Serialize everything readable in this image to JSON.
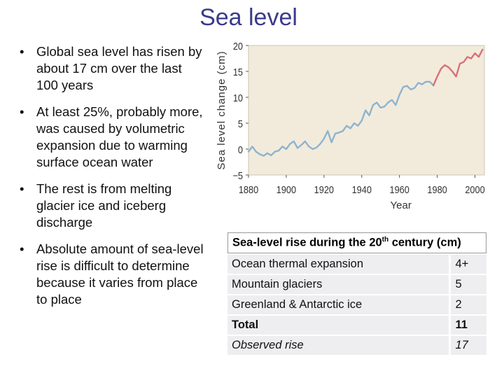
{
  "slide": {
    "title": "Sea level"
  },
  "bullets": [
    "Global sea level has risen by about 17 cm over the last 100 years",
    "At least 25%, probably more, was caused by volumetric expansion due to warming surface ocean water",
    "The rest is from melting glacier ice and iceberg discharge",
    "Absolute amount of sea-level rise is difficult to determine because it varies from place to place"
  ],
  "chart_data": {
    "type": "line",
    "title": "",
    "xlabel": "Year",
    "ylabel": "Sea level change (cm)",
    "xlim": [
      1880,
      2005
    ],
    "ylim": [
      -5,
      20
    ],
    "xticks": [
      "1880",
      "1900",
      "1920",
      "1940",
      "1960",
      "1980",
      "2000"
    ],
    "yticks": [
      "20",
      "15",
      "10",
      "5",
      "0",
      "−5"
    ],
    "grid": false,
    "series": [
      {
        "name": "sea level",
        "color": "#8fb3cf",
        "x": [
          1880,
          1882,
          1884,
          1886,
          1888,
          1890,
          1892,
          1894,
          1896,
          1898,
          1900,
          1902,
          1904,
          1906,
          1908,
          1910,
          1912,
          1914,
          1916,
          1918,
          1920,
          1922,
          1924,
          1926,
          1928,
          1930,
          1932,
          1934,
          1936,
          1938,
          1940,
          1942,
          1944,
          1946,
          1948,
          1950,
          1952,
          1954,
          1956,
          1958,
          1960,
          1962,
          1964,
          1966,
          1968,
          1970,
          1972,
          1974,
          1976,
          1978
        ],
        "y": [
          -0.5,
          0.5,
          -0.5,
          -1,
          -1.3,
          -0.8,
          -1.2,
          -0.5,
          -0.3,
          0.5,
          0,
          1,
          1.5,
          0.2,
          0.8,
          1.5,
          0.5,
          0,
          0.3,
          1,
          2,
          3.5,
          1.3,
          3,
          3.2,
          3.5,
          4.5,
          4,
          5,
          4.5,
          5.5,
          7.5,
          6.5,
          8.5,
          9,
          8,
          8.2,
          9,
          9.5,
          8.5,
          10.5,
          12,
          12.2,
          11.5,
          11.8,
          12.8,
          12.5,
          13,
          13,
          12.3
        ]
      },
      {
        "name": "recent",
        "color": "#d8707a",
        "x": [
          1978,
          1980,
          1982,
          1984,
          1986,
          1988,
          1990,
          1992,
          1994,
          1996,
          1998,
          2000,
          2002,
          2004
        ],
        "y": [
          12.3,
          14,
          15.5,
          16.2,
          15.8,
          15,
          14,
          16.5,
          16.8,
          17.8,
          17.5,
          18.5,
          17.8,
          19.2
        ]
      }
    ]
  },
  "table": {
    "header": "Sea-level rise during the 20",
    "header_sup": "th",
    "header_tail": " century (cm)",
    "rows": [
      {
        "label": "Ocean thermal expansion",
        "value": "4+"
      },
      {
        "label": "Mountain glaciers",
        "value": "5"
      },
      {
        "label": "Greenland & Antarctic ice",
        "value": "2"
      },
      {
        "label": "Total",
        "value": "11"
      },
      {
        "label": "Observed rise",
        "value": "17"
      }
    ]
  }
}
